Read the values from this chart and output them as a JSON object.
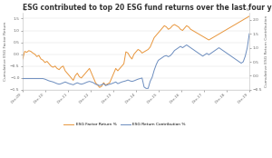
{
  "title": "ESG contributed to top 20 ESG fund returns over the last four years",
  "title_fontsize": 5.5,
  "xlabel_dates": [
    "Dec-09",
    "Dec-10",
    "Dec-11",
    "Dec-12",
    "Dec-13",
    "Dec-14",
    "Dec-15",
    "Dec-16",
    "Dec-17",
    "Dec-18",
    "Dec-19"
  ],
  "ylabel_left": "Cumulative ESG Factor Return",
  "ylabel_right": "Cumulative ESG Return Contribution",
  "ylim_left": [
    -1.5,
    1.75
  ],
  "ylim_right": [
    -0.5,
    2.25
  ],
  "yticks_left": [
    -1.5,
    -1.0,
    -0.5,
    0.0,
    0.5,
    1.0,
    1.5
  ],
  "yticks_right": [
    -0.5,
    0.0,
    0.5,
    1.0,
    1.5,
    2.0
  ],
  "legend_labels": [
    "ESG Factor Return %",
    "ESG Return Contribution %"
  ],
  "color_orange": "#E8963C",
  "color_blue": "#6B8CBE",
  "background_color": "#FFFFFF",
  "grid_color": "#DDDDDD",
  "orange_series": [
    -0.2,
    0.12,
    0.08,
    0.15,
    0.12,
    0.05,
    0.0,
    -0.1,
    -0.05,
    -0.2,
    -0.25,
    -0.35,
    -0.3,
    -0.4,
    -0.5,
    -0.55,
    -0.5,
    -0.6,
    -0.65,
    -0.55,
    -0.5,
    -0.7,
    -0.8,
    -0.9,
    -1.0,
    -1.1,
    -0.9,
    -0.8,
    -0.95,
    -1.0,
    -0.9,
    -0.8,
    -0.7,
    -0.6,
    -0.8,
    -1.0,
    -1.2,
    -1.3,
    -1.4,
    -1.35,
    -1.2,
    -1.3,
    -1.25,
    -1.2,
    -1.0,
    -0.8,
    -0.6,
    -0.7,
    -0.6,
    -0.5,
    -0.4,
    0.1,
    0.05,
    -0.1,
    -0.2,
    0.0,
    0.1,
    0.2,
    0.15,
    0.05,
    0.1,
    0.15,
    0.2,
    0.3,
    0.5,
    0.7,
    0.8,
    0.9,
    1.0,
    1.1,
    1.2,
    1.15,
    1.05,
    1.1,
    1.2,
    1.25,
    1.2,
    1.15,
    1.05,
    1.0,
    1.1,
    1.2,
    1.15,
    1.05,
    1.0,
    0.95,
    0.9,
    0.85,
    0.8,
    0.75,
    0.7,
    0.65,
    0.6,
    0.65,
    0.7,
    0.75,
    0.8,
    0.85,
    0.9,
    0.95,
    1.0,
    1.05,
    1.1,
    1.15,
    1.2,
    1.25,
    1.3,
    1.35,
    1.4,
    1.45,
    1.5,
    1.55,
    1.6
  ],
  "blue_series": [
    -0.1,
    -0.1,
    -0.1,
    -0.1,
    -0.1,
    -0.1,
    -0.1,
    -0.1,
    -0.1,
    -0.1,
    -0.1,
    -0.12,
    -0.15,
    -0.18,
    -0.2,
    -0.22,
    -0.25,
    -0.28,
    -0.3,
    -0.28,
    -0.25,
    -0.22,
    -0.25,
    -0.28,
    -0.3,
    -0.32,
    -0.28,
    -0.25,
    -0.28,
    -0.3,
    -0.28,
    -0.25,
    -0.22,
    -0.2,
    -0.22,
    -0.25,
    -0.3,
    -0.32,
    -0.35,
    -0.32,
    -0.28,
    -0.35,
    -0.32,
    -0.3,
    -0.28,
    -0.25,
    -0.22,
    -0.28,
    -0.25,
    -0.22,
    -0.2,
    -0.18,
    -0.15,
    -0.18,
    -0.2,
    -0.18,
    -0.15,
    -0.12,
    -0.1,
    -0.08,
    -0.4,
    -0.45,
    -0.45,
    -0.2,
    -0.05,
    0.2,
    0.4,
    0.55,
    0.6,
    0.65,
    0.7,
    0.72,
    0.68,
    0.72,
    0.8,
    0.9,
    0.95,
    1.0,
    1.05,
    1.0,
    1.05,
    1.1,
    1.05,
    1.0,
    0.95,
    0.9,
    0.85,
    0.8,
    0.75,
    0.7,
    0.75,
    0.8,
    0.75,
    0.8,
    0.85,
    0.9,
    0.95,
    1.0,
    0.95,
    0.9,
    0.85,
    0.8,
    0.75,
    0.7,
    0.65,
    0.6,
    0.55,
    0.5,
    0.45,
    0.5,
    0.7,
    1.0,
    1.5
  ]
}
